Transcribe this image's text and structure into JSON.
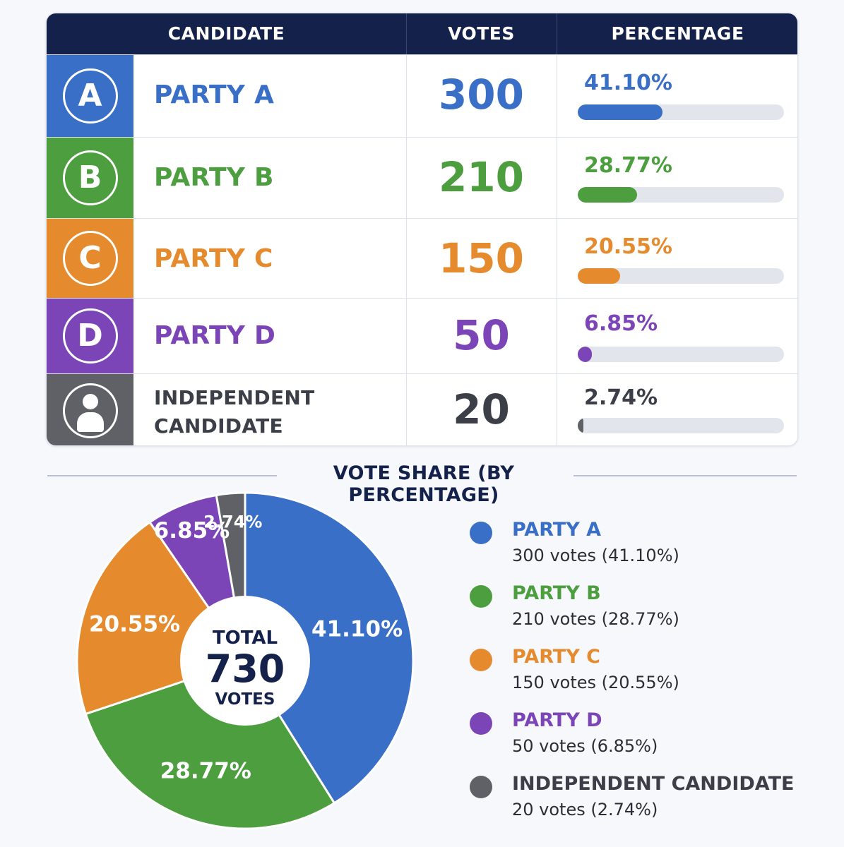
{
  "header": {
    "candidate": "CANDIDATE",
    "votes": "VOTES",
    "percentage": "PERCENTAGE"
  },
  "section_title": "VOTE SHARE (BY PERCENTAGE)",
  "total": {
    "label_top": "TOTAL",
    "value": "730",
    "label_bottom": "VOTES"
  },
  "rows": [
    {
      "letter": "A",
      "name": "PARTY A",
      "votes": "300",
      "pct": "41.10%",
      "share": 41.1,
      "color": "#3a6fc7",
      "legend_sub": "300 votes (41.10%)"
    },
    {
      "letter": "B",
      "name": "PARTY B",
      "votes": "210",
      "pct": "28.77%",
      "share": 28.77,
      "color": "#4c9e3f",
      "legend_sub": "210 votes (28.77%)"
    },
    {
      "letter": "C",
      "name": "PARTY C",
      "votes": "150",
      "pct": "20.55%",
      "share": 20.55,
      "color": "#e68a2e",
      "legend_sub": "150 votes (20.55%)"
    },
    {
      "letter": "D",
      "name": "PARTY D",
      "votes": "50",
      "pct": "6.85%",
      "share": 6.85,
      "color": "#7b45b8",
      "legend_sub": "50 votes (6.85%)"
    },
    {
      "letter": "",
      "name": "INDEPENDENT CANDIDATE",
      "name_line1": "INDEPENDENT",
      "name_line2": "CANDIDATE",
      "votes": "20",
      "pct": "2.74%",
      "share": 2.74,
      "color": "#5f6166",
      "legend_sub": "20 votes (2.74%)"
    }
  ],
  "chart_data": {
    "type": "pie",
    "title": "VOTE SHARE (BY PERCENTAGE)",
    "categories": [
      "PARTY A",
      "PARTY B",
      "PARTY C",
      "PARTY D",
      "INDEPENDENT CANDIDATE"
    ],
    "values": [
      300,
      210,
      150,
      50,
      20
    ],
    "percentages": [
      41.1,
      28.77,
      20.55,
      6.85,
      2.74
    ],
    "slice_labels": [
      "41.10%",
      "28.77%",
      "20.55%",
      "6.85%",
      "2.74%"
    ],
    "center_label": "TOTAL 730 VOTES",
    "legend": "right",
    "colors": [
      "#3a6fc7",
      "#4c9e3f",
      "#e68a2e",
      "#7b45b8",
      "#5f6166"
    ]
  }
}
